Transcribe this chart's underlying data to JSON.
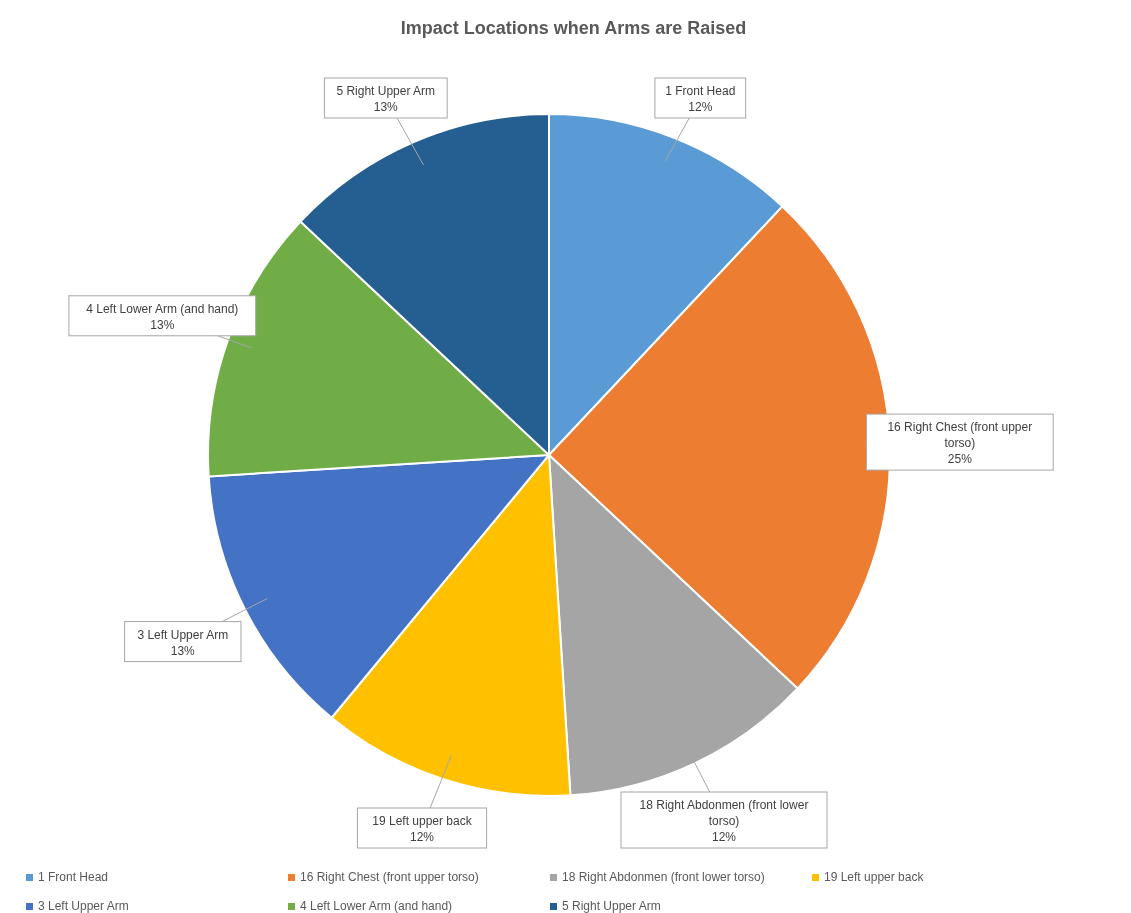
{
  "chart_data": {
    "type": "pie",
    "title": "Impact Locations when Arms are Raised",
    "categories": [
      "1 Front Head",
      "16 Right Chest (front upper torso)",
      "18 Right Abdonmen (front lower torso)",
      "19 Left upper back",
      "3 Left Upper Arm",
      "4 Left Lower Arm (and hand)",
      "5 Right Upper Arm"
    ],
    "values": [
      12,
      25,
      12,
      12,
      13,
      13,
      13
    ],
    "colors": [
      "#5b9bd5",
      "#ed7d31",
      "#a5a5a5",
      "#ffc000",
      "#4472c4",
      "#70ad47",
      "#255e91"
    ],
    "value_labels": [
      "12%",
      "25%",
      "12%",
      "12%",
      "13%",
      "13%",
      "13%"
    ],
    "legend": "bottom"
  }
}
